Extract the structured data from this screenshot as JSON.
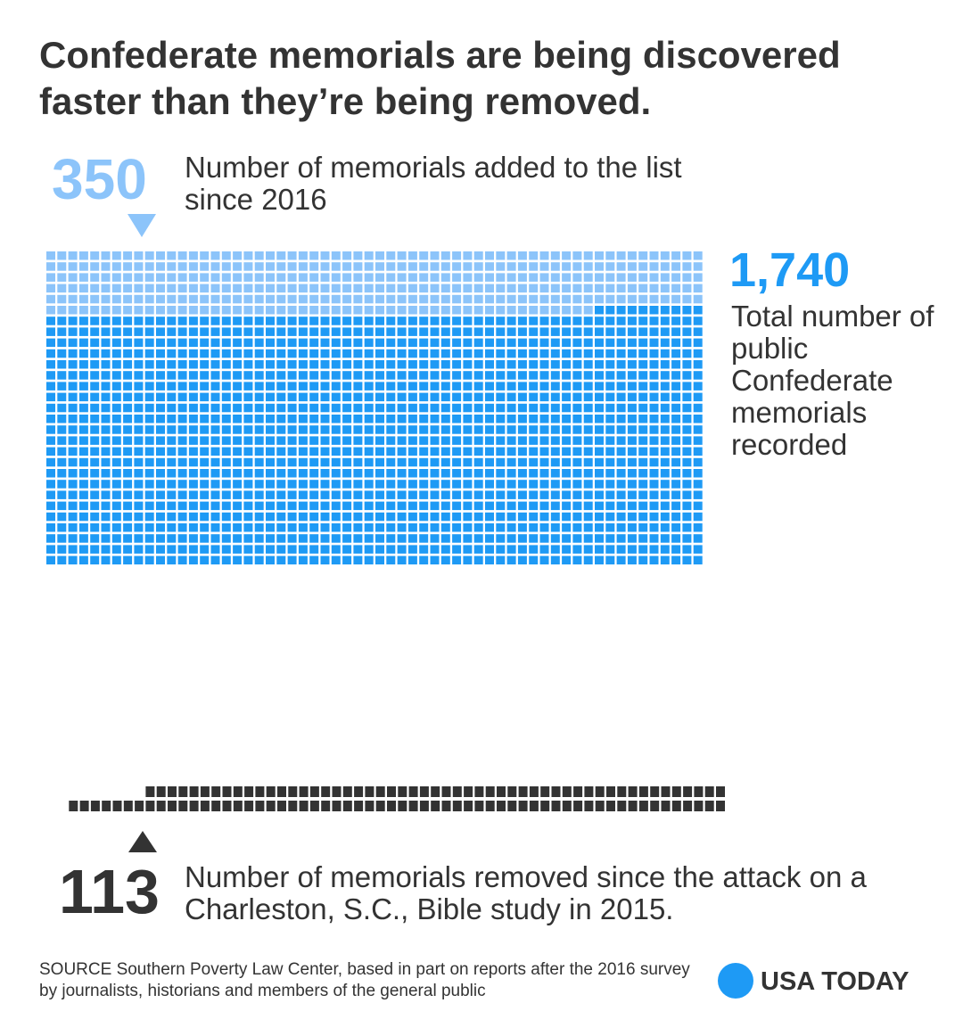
{
  "title": "Confederate memorials are being discovered faster than they’re being removed.",
  "annotations": {
    "added": {
      "number": "350",
      "label": "Number of memorials added to the list since 2016"
    },
    "total": {
      "number": "1,740",
      "label": "Total number of public Confederate memorials recorded"
    },
    "removed": {
      "number": "113",
      "label": "Number of memorials removed since the attack on a Charleston, S.C., Bible study in 2015."
    }
  },
  "source": "SOURCE Southern Poverty Law Center, based in part on reports after the 2016 survey by journalists, historians and members of the general public",
  "brand": {
    "name": "USA TODAY"
  },
  "colors": {
    "added": "#8cc4fa",
    "existing": "#1e9af5",
    "removed": "#333333",
    "brand_dot": "#1e9af5"
  },
  "chart_data": {
    "type": "waffle",
    "total": 1740,
    "series": [
      {
        "key": "added",
        "value": 350
      },
      {
        "key": "existing",
        "value": 1390
      },
      {
        "key": "removed",
        "value": 113
      }
    ],
    "unit": "memorial"
  }
}
